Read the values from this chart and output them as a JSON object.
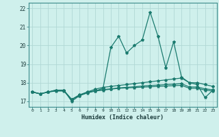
{
  "x": [
    0,
    1,
    2,
    3,
    4,
    5,
    6,
    7,
    8,
    9,
    10,
    11,
    12,
    13,
    14,
    15,
    16,
    17,
    18,
    19,
    20,
    21,
    22,
    23
  ],
  "line1": [
    17.5,
    17.4,
    17.5,
    17.6,
    17.6,
    17.0,
    17.3,
    17.5,
    17.55,
    17.7,
    19.9,
    20.5,
    19.6,
    20.0,
    20.3,
    21.8,
    20.5,
    18.8,
    20.2,
    18.3,
    18.0,
    17.9,
    17.2,
    17.6
  ],
  "line2": [
    17.5,
    17.4,
    17.5,
    17.6,
    17.6,
    17.1,
    17.35,
    17.5,
    17.65,
    17.75,
    17.8,
    17.85,
    17.9,
    17.95,
    18.0,
    18.05,
    18.1,
    18.15,
    18.2,
    18.25,
    18.0,
    18.0,
    17.9,
    17.8
  ],
  "line3": [
    17.5,
    17.4,
    17.5,
    17.57,
    17.57,
    17.1,
    17.32,
    17.47,
    17.57,
    17.63,
    17.67,
    17.72,
    17.75,
    17.78,
    17.82,
    17.85,
    17.87,
    17.9,
    17.92,
    17.95,
    17.77,
    17.77,
    17.67,
    17.62
  ],
  "line4": [
    17.5,
    17.4,
    17.5,
    17.55,
    17.55,
    17.1,
    17.3,
    17.45,
    17.55,
    17.6,
    17.65,
    17.7,
    17.72,
    17.74,
    17.76,
    17.78,
    17.8,
    17.82,
    17.84,
    17.86,
    17.7,
    17.7,
    17.6,
    17.55
  ],
  "line_color": "#1a7a6e",
  "bg_color": "#cff0ec",
  "grid_color": "#b0d8d5",
  "xlabel": "Humidex (Indice chaleur)",
  "ylabel_ticks": [
    17,
    18,
    19,
    20,
    21,
    22
  ],
  "xlim": [
    -0.5,
    23.5
  ],
  "ylim": [
    16.7,
    22.3
  ]
}
